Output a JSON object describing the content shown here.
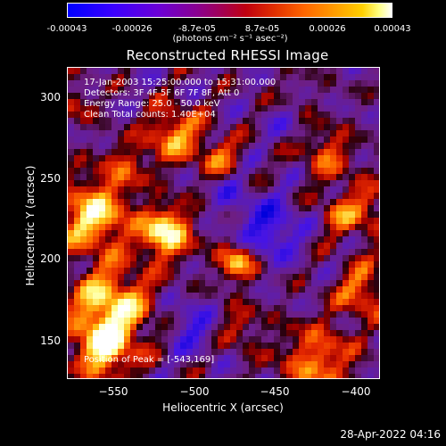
{
  "colorbar": {
    "ticks": [
      "-0.00043",
      "-0.00026",
      "-8.7e-05",
      "8.7e-05",
      "0.00026",
      "0.00043"
    ],
    "units": "(photons cm⁻² s⁻¹ asec⁻²)"
  },
  "title": "Reconstructed RHESSI Image",
  "annotations": {
    "time": "17-Jan-2003 15:25:00.000 to 15:31:00.000",
    "detectors": "Detectors: 3F 4F 5F 6F 7F 8F, Att 0",
    "energy": "Energy Range: 25.0 - 50.0 keV",
    "clean": "Clean    Total counts: 1.40E+04",
    "peak": "Position of Peak = [-543,169]"
  },
  "axes": {
    "xlabel": "Heliocentric X (arcsec)",
    "ylabel": "Heliocentric Y (arcsec)",
    "xticks": [
      "−550",
      "−500",
      "−450",
      "−400"
    ],
    "yticks": [
      "300",
      "250",
      "200",
      "150"
    ]
  },
  "timestamp": "28-Apr-2022 04:16"
}
